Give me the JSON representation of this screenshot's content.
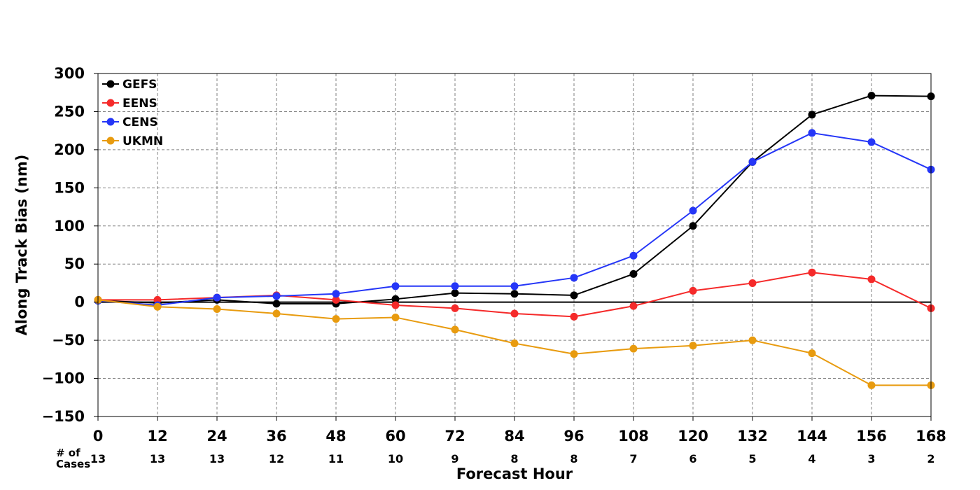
{
  "chart_data": {
    "type": "line",
    "xlabel": "Forecast Hour",
    "ylabel": "Along Track Bias (nm)",
    "x": [
      0,
      12,
      24,
      36,
      48,
      60,
      72,
      84,
      96,
      108,
      120,
      132,
      144,
      156,
      168
    ],
    "x_tick_labels": [
      "0",
      "12",
      "24",
      "36",
      "48",
      "60",
      "72",
      "84",
      "96",
      "108",
      "120",
      "132",
      "144",
      "156",
      "168"
    ],
    "xlim": [
      0,
      168
    ],
    "ylim": [
      -150,
      300
    ],
    "y_ticks": [
      -150,
      -100,
      -50,
      0,
      50,
      100,
      150,
      200,
      250,
      300
    ],
    "y_tick_labels": [
      "−150",
      "−100",
      "−50",
      "0",
      "50",
      "100",
      "150",
      "200",
      "250",
      "300"
    ],
    "grid": true,
    "zero_line": true,
    "legend": "top-left",
    "series": [
      {
        "name": "GEFS",
        "color": "#000000",
        "values": [
          2,
          -1,
          3,
          -2,
          -2,
          4,
          12,
          11,
          9,
          37,
          100,
          184,
          246,
          271,
          270
        ]
      },
      {
        "name": "EENS",
        "color": "#f52a2a",
        "values": [
          3,
          3,
          6,
          9,
          3,
          -4,
          -8,
          -15,
          -19,
          -5,
          15,
          25,
          39,
          30,
          -8
        ]
      },
      {
        "name": "CENS",
        "color": "#2536f7",
        "values": [
          2,
          -4,
          6,
          8,
          11,
          21,
          21,
          21,
          32,
          61,
          120,
          184,
          222,
          210,
          174
        ]
      },
      {
        "name": "UKMN",
        "color": "#e89b0f",
        "values": [
          3,
          -6,
          -9,
          -15,
          -22,
          -20,
          -36,
          -54,
          -68,
          -61,
          -57,
          -50,
          -67,
          -109,
          -109
        ]
      }
    ],
    "cases": {
      "label_line1": "# of",
      "label_line2": "Cases",
      "values": [
        "13",
        "13",
        "13",
        "12",
        "11",
        "10",
        "9",
        "8",
        "8",
        "7",
        "6",
        "5",
        "4",
        "3",
        "2"
      ]
    }
  }
}
